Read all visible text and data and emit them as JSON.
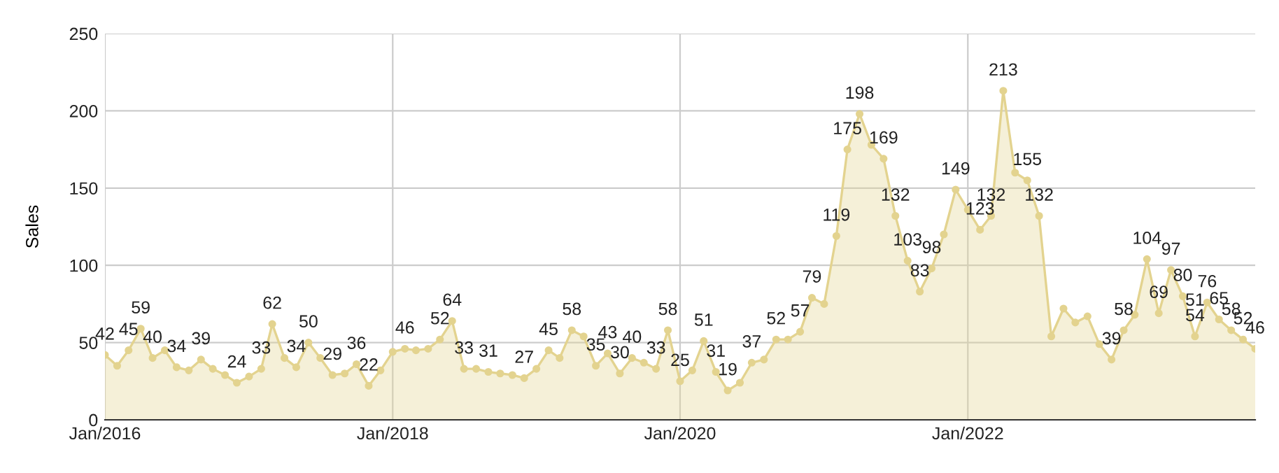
{
  "chart_data": {
    "type": "area",
    "ylabel": "Sales",
    "x": [
      "2016-01",
      "2016-02",
      "2016-03",
      "2016-04",
      "2016-05",
      "2016-06",
      "2016-07",
      "2016-08",
      "2016-09",
      "2016-10",
      "2016-11",
      "2016-12",
      "2017-01",
      "2017-02",
      "2017-03",
      "2017-04",
      "2017-05",
      "2017-06",
      "2017-07",
      "2017-08",
      "2017-09",
      "2017-10",
      "2017-11",
      "2017-12",
      "2018-01",
      "2018-02",
      "2018-03",
      "2018-04",
      "2018-05",
      "2018-06",
      "2018-07",
      "2018-08",
      "2018-09",
      "2018-10",
      "2018-11",
      "2018-12",
      "2019-01",
      "2019-02",
      "2019-03",
      "2019-04",
      "2019-05",
      "2019-06",
      "2019-07",
      "2019-08",
      "2019-09",
      "2019-10",
      "2019-11",
      "2019-12",
      "2020-01",
      "2020-02",
      "2020-03",
      "2020-04",
      "2020-05",
      "2020-06",
      "2020-07",
      "2020-08",
      "2020-09",
      "2020-10",
      "2020-11",
      "2020-12",
      "2021-01",
      "2021-02",
      "2021-03",
      "2021-04",
      "2021-05",
      "2021-06",
      "2021-07",
      "2021-08",
      "2021-09",
      "2021-10",
      "2021-11",
      "2021-12",
      "2022-01",
      "2022-02",
      "2022-03",
      "2022-04",
      "2022-05",
      "2022-06",
      "2022-07",
      "2022-08",
      "2022-09",
      "2022-10",
      "2022-11",
      "2022-12",
      "2023-01",
      "2023-02",
      "2023-03",
      "2023-04",
      "2023-05",
      "2023-06",
      "2023-07",
      "2023-08",
      "2023-09",
      "2023-10",
      "2023-11",
      "2023-12",
      "2024-01"
    ],
    "series": [
      {
        "color": "#e3d38f",
        "values": [
          42,
          35,
          45,
          59,
          40,
          45,
          34,
          32,
          39,
          33,
          29,
          24,
          28,
          33,
          62,
          40,
          34,
          50,
          40,
          29,
          30,
          36,
          22,
          32,
          44,
          46,
          45,
          46,
          52,
          64,
          33,
          33,
          31,
          30,
          29,
          27,
          33,
          45,
          40,
          58,
          54,
          35,
          43,
          30,
          40,
          37,
          33,
          58,
          25,
          32,
          51,
          31,
          19,
          24,
          37,
          39,
          52,
          52,
          57,
          79,
          75,
          119,
          175,
          198,
          178,
          169,
          132,
          103,
          83,
          98,
          120,
          149,
          136,
          123,
          132,
          213,
          160,
          155,
          132,
          54,
          72,
          63,
          67,
          49,
          39,
          58,
          68,
          104,
          69,
          97,
          80,
          54,
          76,
          65,
          58,
          52,
          46
        ],
        "value_labels": [
          "42",
          null,
          "45",
          "59",
          "40",
          null,
          "34",
          null,
          "39",
          null,
          null,
          "24",
          null,
          "33",
          "62",
          null,
          "34",
          "50",
          null,
          "29",
          null,
          "36",
          "22",
          null,
          null,
          "46",
          null,
          null,
          "52",
          "64",
          "33",
          null,
          "31",
          null,
          null,
          "27",
          null,
          "45",
          null,
          "58",
          null,
          "35",
          "43",
          "30",
          "40",
          null,
          "33",
          "58",
          "25",
          null,
          "51",
          "31",
          "19",
          null,
          "37",
          null,
          "52",
          null,
          "57",
          "79",
          null,
          "119",
          "175",
          "198",
          null,
          "169",
          "132",
          "103",
          "83",
          "98",
          null,
          "149",
          null,
          "123",
          "132",
          "213",
          null,
          "155",
          "132",
          null,
          null,
          null,
          null,
          null,
          "39",
          "58",
          null,
          "104",
          "69",
          "97",
          "80",
          "54",
          "76",
          "65",
          "58",
          "52",
          "46"
        ]
      }
    ],
    "annotations": [
      {
        "text": "51",
        "x": "2023-08",
        "y": 54
      }
    ],
    "xlim": [
      "2016-01",
      "2024-01"
    ],
    "xticks": [
      {
        "value": "2016-01",
        "label": "Jan/2016"
      },
      {
        "value": "2018-01",
        "label": "Jan/2018"
      },
      {
        "value": "2020-01",
        "label": "Jan/2020"
      },
      {
        "value": "2022-01",
        "label": "Jan/2022"
      }
    ],
    "ylim": [
      0,
      250
    ],
    "yticks": [
      0,
      50,
      100,
      150,
      200,
      250
    ],
    "grid": true,
    "marker": "circle",
    "legend": false
  }
}
